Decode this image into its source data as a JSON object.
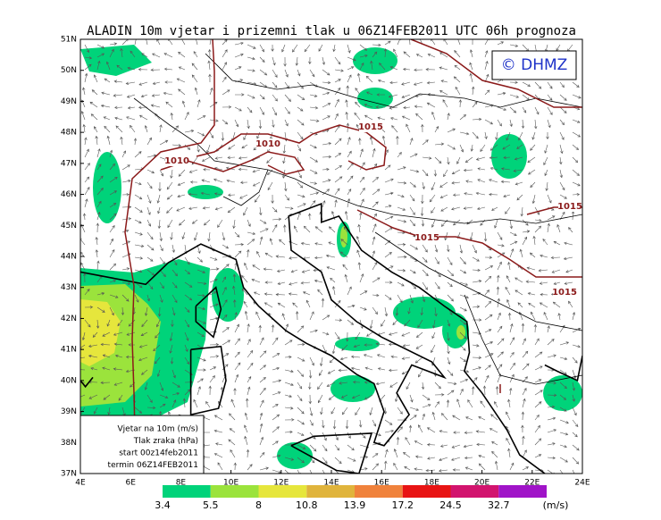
{
  "header": {
    "title": "ALADIN 10m vjetar i prizemni tlak u 06Z14FEB2011 UTC 06h prognoza"
  },
  "map": {
    "copyright": "© DHMZ",
    "lat_labels": [
      "51N",
      "50N",
      "49N",
      "48N",
      "47N",
      "46N",
      "45N",
      "44N",
      "43N",
      "42N",
      "41N",
      "40N",
      "39N",
      "38N",
      "37N"
    ],
    "lon_labels": [
      "4E",
      "6E",
      "8E",
      "10E",
      "12E",
      "14E",
      "16E",
      "18E",
      "20E",
      "22E",
      "24E"
    ],
    "isobar_labels": [
      "1010",
      "1010",
      "1015",
      "1015",
      "1015",
      "1015"
    ]
  },
  "info_box": {
    "lines": [
      "Vjetar na 10m (m/s)",
      "Tlak zraka (hPa)",
      "start 00z14feb2011",
      "termin 06Z14FEB2011"
    ]
  },
  "colorbar": {
    "colors": [
      "#00d37a",
      "#9be33c",
      "#e6e63c",
      "#e0b43c",
      "#f0823c",
      "#e81414",
      "#d2146e",
      "#a014c8"
    ],
    "labels": [
      "3.4",
      "5.5",
      "8",
      "10.8",
      "13.9",
      "17.2",
      "24.5",
      "32.7"
    ],
    "unit": "(m/s)"
  }
}
